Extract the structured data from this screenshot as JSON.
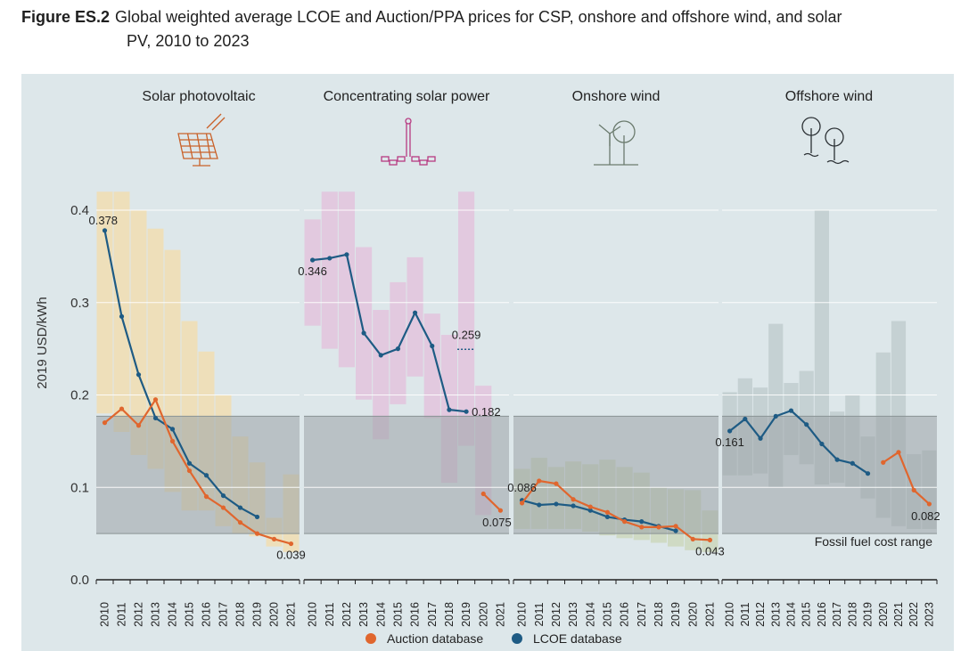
{
  "figure": {
    "number": "Figure ES.2",
    "title_line1": "Global weighted average LCOE and Auction/PPA prices for CSP, onshore and offshore wind, and solar",
    "title_line2": "PV, 2010 to 2023"
  },
  "colors": {
    "background": "#dde7ea",
    "auction": "#e0662e",
    "lcoe": "#1e5b84",
    "fossil_band": "#9aa3a5",
    "gridline": "#ffffff",
    "solar_pv_range": "#f1ddb2",
    "csp_range": "#e3c3dd",
    "onshore_range": "#ccd7bd",
    "offshore_range": "#c1cdcf"
  },
  "chart_data": {
    "type": "line",
    "ylabel": "2019 USD/kWh",
    "ylim": [
      0,
      0.42
    ],
    "yticks": [
      0.0,
      0.1,
      0.2,
      0.3,
      0.4
    ],
    "ytick_labels": [
      "0.0",
      "0.1",
      "0.2",
      "0.3",
      "0.4"
    ],
    "grid": true,
    "legend": {
      "position": "bottom-center",
      "entries": [
        {
          "label": "Auction database",
          "series": "auction"
        },
        {
          "label": "LCOE database",
          "series": "lcoe"
        }
      ]
    },
    "fossil_fuel_range": {
      "label": "Fossil fuel cost range",
      "low": 0.05,
      "high": 0.177
    },
    "panels": [
      {
        "name": "Solar photovoltaic",
        "icon": "solar-panel-icon",
        "x": [
          "2010",
          "2011",
          "2012",
          "2013",
          "2014",
          "2015",
          "2016",
          "2017",
          "2018",
          "2019",
          "2020",
          "2021"
        ],
        "range_low": [
          0.18,
          0.16,
          0.135,
          0.12,
          0.095,
          0.075,
          0.075,
          0.058,
          0.05,
          0.047,
          0.036,
          0.03
        ],
        "range_high": [
          0.42,
          0.42,
          0.4,
          0.38,
          0.357,
          0.28,
          0.247,
          0.2,
          0.155,
          0.127,
          0.067,
          0.114
        ],
        "lcoe": [
          0.378,
          0.285,
          0.222,
          0.175,
          0.163,
          0.126,
          0.113,
          0.091,
          0.078,
          0.068,
          null,
          null
        ],
        "auction": [
          0.17,
          0.185,
          0.167,
          0.195,
          0.15,
          0.118,
          0.09,
          0.078,
          0.062,
          0.05,
          0.044,
          0.039
        ],
        "labels": [
          {
            "text": "0.378",
            "series": "lcoe",
            "index": 0,
            "pos": "right-above"
          },
          {
            "text": "0.039",
            "series": "auction",
            "index": 11,
            "pos": "below"
          }
        ]
      },
      {
        "name": "Concentrating solar power",
        "icon": "solar-tower-icon",
        "x": [
          "2010",
          "2011",
          "2012",
          "2013",
          "2014",
          "2015",
          "2016",
          "2017",
          "2018",
          "2019",
          "2020",
          "2021"
        ],
        "range_low": [
          0.275,
          0.25,
          0.23,
          0.195,
          0.152,
          0.19,
          0.22,
          0.175,
          0.105,
          0.145,
          0.07,
          null
        ],
        "range_high": [
          0.39,
          0.42,
          0.42,
          0.36,
          0.292,
          0.322,
          0.349,
          0.288,
          0.265,
          0.42,
          0.21,
          null
        ],
        "lcoe": [
          0.346,
          0.348,
          0.352,
          0.267,
          0.243,
          0.25,
          0.289,
          0.253,
          0.184,
          0.182,
          null,
          null
        ],
        "auction": [
          null,
          null,
          null,
          null,
          null,
          null,
          null,
          null,
          null,
          null,
          0.093,
          0.075
        ],
        "labels": [
          {
            "text": "0.346",
            "series": "lcoe",
            "index": 0,
            "pos": "below"
          },
          {
            "text": "0.182",
            "series": "lcoe",
            "index": 9,
            "pos": "right"
          },
          {
            "text": "0.259",
            "series": "note",
            "index": 9,
            "value": 0.259,
            "pos": "above-dotted"
          },
          {
            "text": "0.075",
            "series": "auction",
            "index": 11,
            "pos": "below-left"
          }
        ]
      },
      {
        "name": "Onshore wind",
        "icon": "wind-turbine-icon",
        "x": [
          "2010",
          "2011",
          "2012",
          "2013",
          "2014",
          "2015",
          "2016",
          "2017",
          "2018",
          "2019",
          "2020",
          "2021"
        ],
        "range_low": [
          0.055,
          0.055,
          0.055,
          0.055,
          0.052,
          0.048,
          0.045,
          0.043,
          0.04,
          0.036,
          0.032,
          0.03
        ],
        "range_high": [
          0.12,
          0.132,
          0.122,
          0.128,
          0.125,
          0.13,
          0.122,
          0.116,
          0.1,
          0.098,
          0.097,
          0.075
        ],
        "lcoe": [
          0.086,
          0.081,
          0.082,
          0.08,
          0.075,
          0.068,
          0.065,
          0.063,
          0.058,
          0.053,
          null,
          null
        ],
        "auction": [
          0.083,
          0.107,
          0.104,
          0.087,
          0.079,
          0.073,
          0.063,
          0.057,
          0.057,
          0.058,
          0.044,
          0.043
        ],
        "labels": [
          {
            "text": "0.086",
            "series": "lcoe",
            "index": 0,
            "pos": "above"
          },
          {
            "text": "0.043",
            "series": "auction",
            "index": 11,
            "pos": "below"
          }
        ]
      },
      {
        "name": "Offshore wind",
        "icon": "offshore-wind-icon",
        "x": [
          "2010",
          "2011",
          "2012",
          "2013",
          "2014",
          "2015",
          "2016",
          "2017",
          "2018",
          "2019",
          "2020",
          "2021",
          "2022",
          "2023"
        ],
        "range_low": [
          0.113,
          0.113,
          0.115,
          0.1,
          0.135,
          0.125,
          0.103,
          0.105,
          0.1,
          0.088,
          0.067,
          0.058,
          0.055,
          0.055
        ],
        "range_high": [
          0.203,
          0.218,
          0.208,
          0.277,
          0.213,
          0.226,
          0.4,
          0.182,
          0.2,
          0.155,
          0.246,
          0.28,
          0.136,
          0.14
        ],
        "lcoe": [
          0.161,
          0.174,
          0.153,
          0.177,
          0.183,
          0.168,
          0.147,
          0.13,
          0.126,
          0.115,
          null,
          null,
          null,
          null
        ],
        "auction": [
          null,
          null,
          null,
          null,
          null,
          null,
          null,
          null,
          null,
          null,
          0.127,
          0.138,
          0.097,
          0.082
        ],
        "labels": [
          {
            "text": "0.161",
            "series": "lcoe",
            "index": 0,
            "pos": "below"
          },
          {
            "text": "0.082",
            "series": "auction",
            "index": 13,
            "pos": "below-left"
          }
        ]
      }
    ]
  }
}
